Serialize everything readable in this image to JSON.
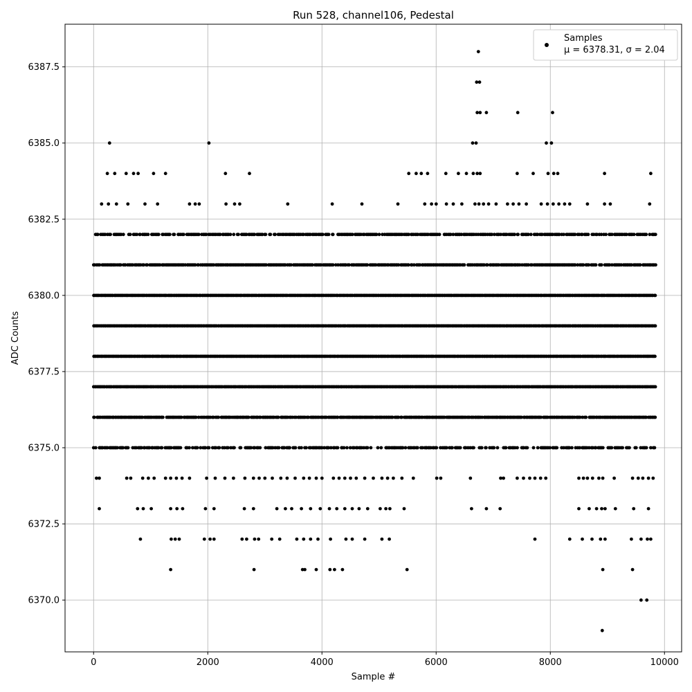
{
  "chart_data": {
    "type": "scatter",
    "title": "Run 528, channel106, Pedestal",
    "xlabel": "Sample #",
    "ylabel": "ADC Counts",
    "xlim": [
      -500,
      10300
    ],
    "ylim": [
      6368.3,
      6388.9
    ],
    "xticks": [
      0,
      2000,
      4000,
      6000,
      8000,
      10000
    ],
    "xtick_labels": [
      "0",
      "2000",
      "4000",
      "6000",
      "8000",
      "10000"
    ],
    "yticks": [
      6370.0,
      6372.5,
      6375.0,
      6377.5,
      6380.0,
      6382.5,
      6385.0,
      6387.5
    ],
    "ytick_labels": [
      "6370.0",
      "6372.5",
      "6375.0",
      "6377.5",
      "6380.0",
      "6382.5",
      "6385.0",
      "6387.5"
    ],
    "grid": true,
    "legend": {
      "placement": "top-right",
      "entries": [
        {
          "name": "Samples",
          "stats": "μ = 6378.31, σ = 2.04",
          "color": "#000000"
        }
      ]
    },
    "series": [
      {
        "name": "Samples",
        "color": "#000000",
        "marker": "circle",
        "dense_levels": [
          {
            "y": 6375,
            "x_range": [
              0,
              9850
            ],
            "density": 0.6
          },
          {
            "y": 6376,
            "x_range": [
              0,
              9850
            ],
            "density": 0.9
          },
          {
            "y": 6377,
            "x_range": [
              0,
              9850
            ],
            "density": 1.0
          },
          {
            "y": 6378,
            "x_range": [
              0,
              9850
            ],
            "density": 1.0
          },
          {
            "y": 6379,
            "x_range": [
              0,
              9850
            ],
            "density": 1.0
          },
          {
            "y": 6380,
            "x_range": [
              0,
              9850
            ],
            "density": 1.0
          },
          {
            "y": 6381,
            "x_range": [
              0,
              9850
            ],
            "density": 0.85
          },
          {
            "y": 6382,
            "x_range": [
              0,
              9850
            ],
            "density": 0.75
          }
        ],
        "points": [
          [
            280,
            6385
          ],
          [
            2020,
            6385
          ],
          [
            6640,
            6385
          ],
          [
            6700,
            6385
          ],
          [
            7930,
            6385
          ],
          [
            8020,
            6385
          ],
          [
            6740,
            6388
          ],
          [
            6710,
            6387
          ],
          [
            6760,
            6387
          ],
          [
            6720,
            6386
          ],
          [
            6770,
            6386
          ],
          [
            6880,
            6386
          ],
          [
            7430,
            6386
          ],
          [
            8040,
            6386
          ],
          [
            240,
            6384
          ],
          [
            370,
            6384
          ],
          [
            570,
            6384
          ],
          [
            700,
            6384
          ],
          [
            780,
            6384
          ],
          [
            1050,
            6384
          ],
          [
            1260,
            6384
          ],
          [
            2310,
            6384
          ],
          [
            2730,
            6384
          ],
          [
            5520,
            6384
          ],
          [
            5650,
            6384
          ],
          [
            5740,
            6384
          ],
          [
            5850,
            6384
          ],
          [
            6170,
            6384
          ],
          [
            6390,
            6384
          ],
          [
            6530,
            6384
          ],
          [
            6650,
            6384
          ],
          [
            6720,
            6384
          ],
          [
            6770,
            6384
          ],
          [
            7420,
            6384
          ],
          [
            7700,
            6384
          ],
          [
            7960,
            6384
          ],
          [
            8060,
            6384
          ],
          [
            8130,
            6384
          ],
          [
            8950,
            6384
          ],
          [
            9760,
            6384
          ],
          [
            140,
            6383
          ],
          [
            260,
            6383
          ],
          [
            400,
            6383
          ],
          [
            600,
            6383
          ],
          [
            900,
            6383
          ],
          [
            1120,
            6383
          ],
          [
            1680,
            6383
          ],
          [
            1780,
            6383
          ],
          [
            1850,
            6383
          ],
          [
            2320,
            6383
          ],
          [
            2470,
            6383
          ],
          [
            2560,
            6383
          ],
          [
            3400,
            6383
          ],
          [
            4180,
            6383
          ],
          [
            4700,
            6383
          ],
          [
            5330,
            6383
          ],
          [
            5800,
            6383
          ],
          [
            5920,
            6383
          ],
          [
            6000,
            6383
          ],
          [
            6180,
            6383
          ],
          [
            6300,
            6383
          ],
          [
            6450,
            6383
          ],
          [
            6680,
            6383
          ],
          [
            6750,
            6383
          ],
          [
            6830,
            6383
          ],
          [
            6920,
            6383
          ],
          [
            7050,
            6383
          ],
          [
            7250,
            6383
          ],
          [
            7350,
            6383
          ],
          [
            7450,
            6383
          ],
          [
            7580,
            6383
          ],
          [
            7840,
            6383
          ],
          [
            7950,
            6383
          ],
          [
            8050,
            6383
          ],
          [
            8150,
            6383
          ],
          [
            8250,
            6383
          ],
          [
            8340,
            6383
          ],
          [
            8650,
            6383
          ],
          [
            8950,
            6383
          ],
          [
            9050,
            6383
          ],
          [
            9740,
            6383
          ],
          [
            50,
            6374
          ],
          [
            100,
            6374
          ],
          [
            580,
            6374
          ],
          [
            650,
            6374
          ],
          [
            860,
            6374
          ],
          [
            960,
            6374
          ],
          [
            1060,
            6374
          ],
          [
            1260,
            6374
          ],
          [
            1350,
            6374
          ],
          [
            1450,
            6374
          ],
          [
            1550,
            6374
          ],
          [
            1680,
            6374
          ],
          [
            1980,
            6374
          ],
          [
            2130,
            6374
          ],
          [
            2300,
            6374
          ],
          [
            2450,
            6374
          ],
          [
            2650,
            6374
          ],
          [
            2800,
            6374
          ],
          [
            2900,
            6374
          ],
          [
            3000,
            6374
          ],
          [
            3130,
            6374
          ],
          [
            3280,
            6374
          ],
          [
            3390,
            6374
          ],
          [
            3530,
            6374
          ],
          [
            3680,
            6374
          ],
          [
            3780,
            6374
          ],
          [
            3900,
            6374
          ],
          [
            4000,
            6374
          ],
          [
            4200,
            6374
          ],
          [
            4300,
            6374
          ],
          [
            4400,
            6374
          ],
          [
            4500,
            6374
          ],
          [
            4600,
            6374
          ],
          [
            4750,
            6374
          ],
          [
            4900,
            6374
          ],
          [
            5050,
            6374
          ],
          [
            5150,
            6374
          ],
          [
            5250,
            6374
          ],
          [
            5400,
            6374
          ],
          [
            5600,
            6374
          ],
          [
            6010,
            6374
          ],
          [
            6080,
            6374
          ],
          [
            6600,
            6374
          ],
          [
            7130,
            6374
          ],
          [
            7180,
            6374
          ],
          [
            7420,
            6374
          ],
          [
            7530,
            6374
          ],
          [
            7640,
            6374
          ],
          [
            7730,
            6374
          ],
          [
            7830,
            6374
          ],
          [
            7920,
            6374
          ],
          [
            8500,
            6374
          ],
          [
            8580,
            6374
          ],
          [
            8650,
            6374
          ],
          [
            8740,
            6374
          ],
          [
            8850,
            6374
          ],
          [
            8920,
            6374
          ],
          [
            9120,
            6374
          ],
          [
            9440,
            6374
          ],
          [
            9540,
            6374
          ],
          [
            9620,
            6374
          ],
          [
            9720,
            6374
          ],
          [
            9800,
            6374
          ],
          [
            100,
            6373
          ],
          [
            770,
            6373
          ],
          [
            870,
            6373
          ],
          [
            1010,
            6373
          ],
          [
            1350,
            6373
          ],
          [
            1460,
            6373
          ],
          [
            1560,
            6373
          ],
          [
            1960,
            6373
          ],
          [
            2110,
            6373
          ],
          [
            2640,
            6373
          ],
          [
            2800,
            6373
          ],
          [
            3210,
            6373
          ],
          [
            3360,
            6373
          ],
          [
            3470,
            6373
          ],
          [
            3640,
            6373
          ],
          [
            3800,
            6373
          ],
          [
            3970,
            6373
          ],
          [
            4130,
            6373
          ],
          [
            4260,
            6373
          ],
          [
            4400,
            6373
          ],
          [
            4530,
            6373
          ],
          [
            4650,
            6373
          ],
          [
            4800,
            6373
          ],
          [
            5020,
            6373
          ],
          [
            5120,
            6373
          ],
          [
            5190,
            6373
          ],
          [
            5440,
            6373
          ],
          [
            6620,
            6373
          ],
          [
            6880,
            6373
          ],
          [
            7120,
            6373
          ],
          [
            8500,
            6373
          ],
          [
            8680,
            6373
          ],
          [
            8810,
            6373
          ],
          [
            8900,
            6373
          ],
          [
            8960,
            6373
          ],
          [
            9140,
            6373
          ],
          [
            9460,
            6373
          ],
          [
            9720,
            6373
          ],
          [
            820,
            6372
          ],
          [
            1360,
            6372
          ],
          [
            1430,
            6372
          ],
          [
            1500,
            6372
          ],
          [
            1940,
            6372
          ],
          [
            2040,
            6372
          ],
          [
            2110,
            6372
          ],
          [
            2600,
            6372
          ],
          [
            2680,
            6372
          ],
          [
            2820,
            6372
          ],
          [
            2890,
            6372
          ],
          [
            3120,
            6372
          ],
          [
            3260,
            6372
          ],
          [
            3560,
            6372
          ],
          [
            3680,
            6372
          ],
          [
            3800,
            6372
          ],
          [
            3930,
            6372
          ],
          [
            4150,
            6372
          ],
          [
            4420,
            6372
          ],
          [
            4530,
            6372
          ],
          [
            4750,
            6372
          ],
          [
            5050,
            6372
          ],
          [
            5180,
            6372
          ],
          [
            7730,
            6372
          ],
          [
            8340,
            6372
          ],
          [
            8560,
            6372
          ],
          [
            8730,
            6372
          ],
          [
            8880,
            6372
          ],
          [
            8960,
            6372
          ],
          [
            9420,
            6372
          ],
          [
            9590,
            6372
          ],
          [
            9700,
            6372
          ],
          [
            9760,
            6372
          ],
          [
            1350,
            6371
          ],
          [
            2810,
            6371
          ],
          [
            3660,
            6371
          ],
          [
            3700,
            6371
          ],
          [
            3900,
            6371
          ],
          [
            4140,
            6371
          ],
          [
            4220,
            6371
          ],
          [
            4360,
            6371
          ],
          [
            5490,
            6371
          ],
          [
            8920,
            6371
          ],
          [
            9440,
            6371
          ],
          [
            9590,
            6370
          ],
          [
            9690,
            6370
          ],
          [
            8910,
            6369
          ]
        ]
      }
    ]
  }
}
